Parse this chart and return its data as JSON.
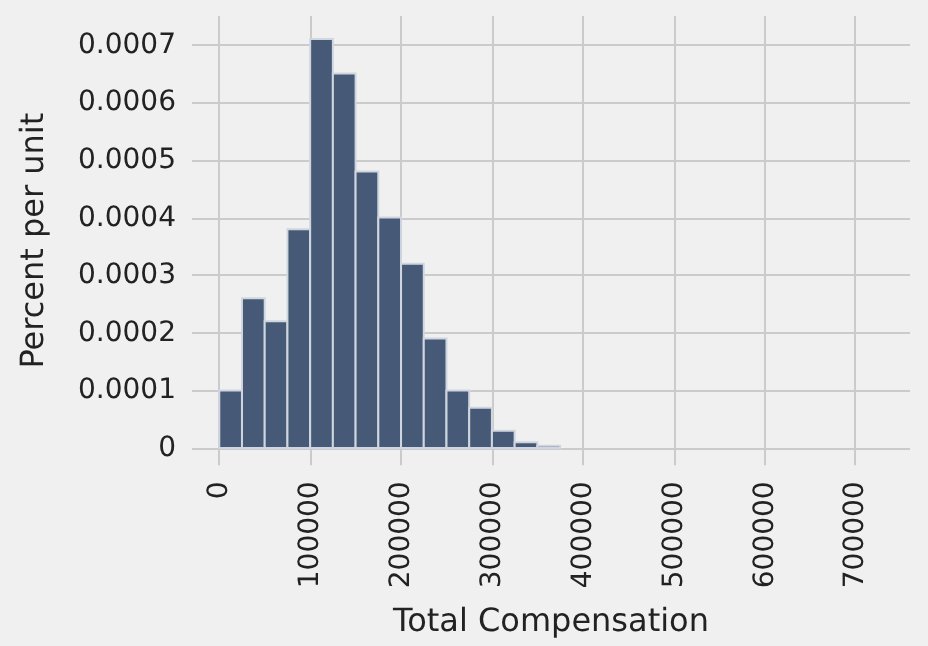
{
  "chart_data": {
    "type": "histogram",
    "xlabel": "Total Compensation",
    "ylabel": "Percent per unit",
    "bins": [
      0,
      25000,
      50000,
      75000,
      100000,
      125000,
      150000,
      175000,
      200000,
      225000,
      250000,
      275000,
      300000,
      325000,
      350000,
      375000
    ],
    "values": [
      0.0001,
      0.00026,
      0.00022,
      0.00038,
      0.00071,
      0.00065,
      0.00048,
      0.0004,
      0.00032,
      0.00019,
      0.0001,
      7e-05,
      3e-05,
      1e-05,
      4e-06
    ],
    "color": "#465a78",
    "xlim": [
      -30000,
      760000
    ],
    "xticks": [
      0,
      100000,
      200000,
      300000,
      400000,
      500000,
      600000,
      700000
    ],
    "ylim": [
      -3e-05,
      0.00075
    ],
    "yticks": [
      0,
      0.0001,
      0.0002,
      0.0003,
      0.0004,
      0.0005,
      0.0006,
      0.0007
    ],
    "grid": true
  }
}
